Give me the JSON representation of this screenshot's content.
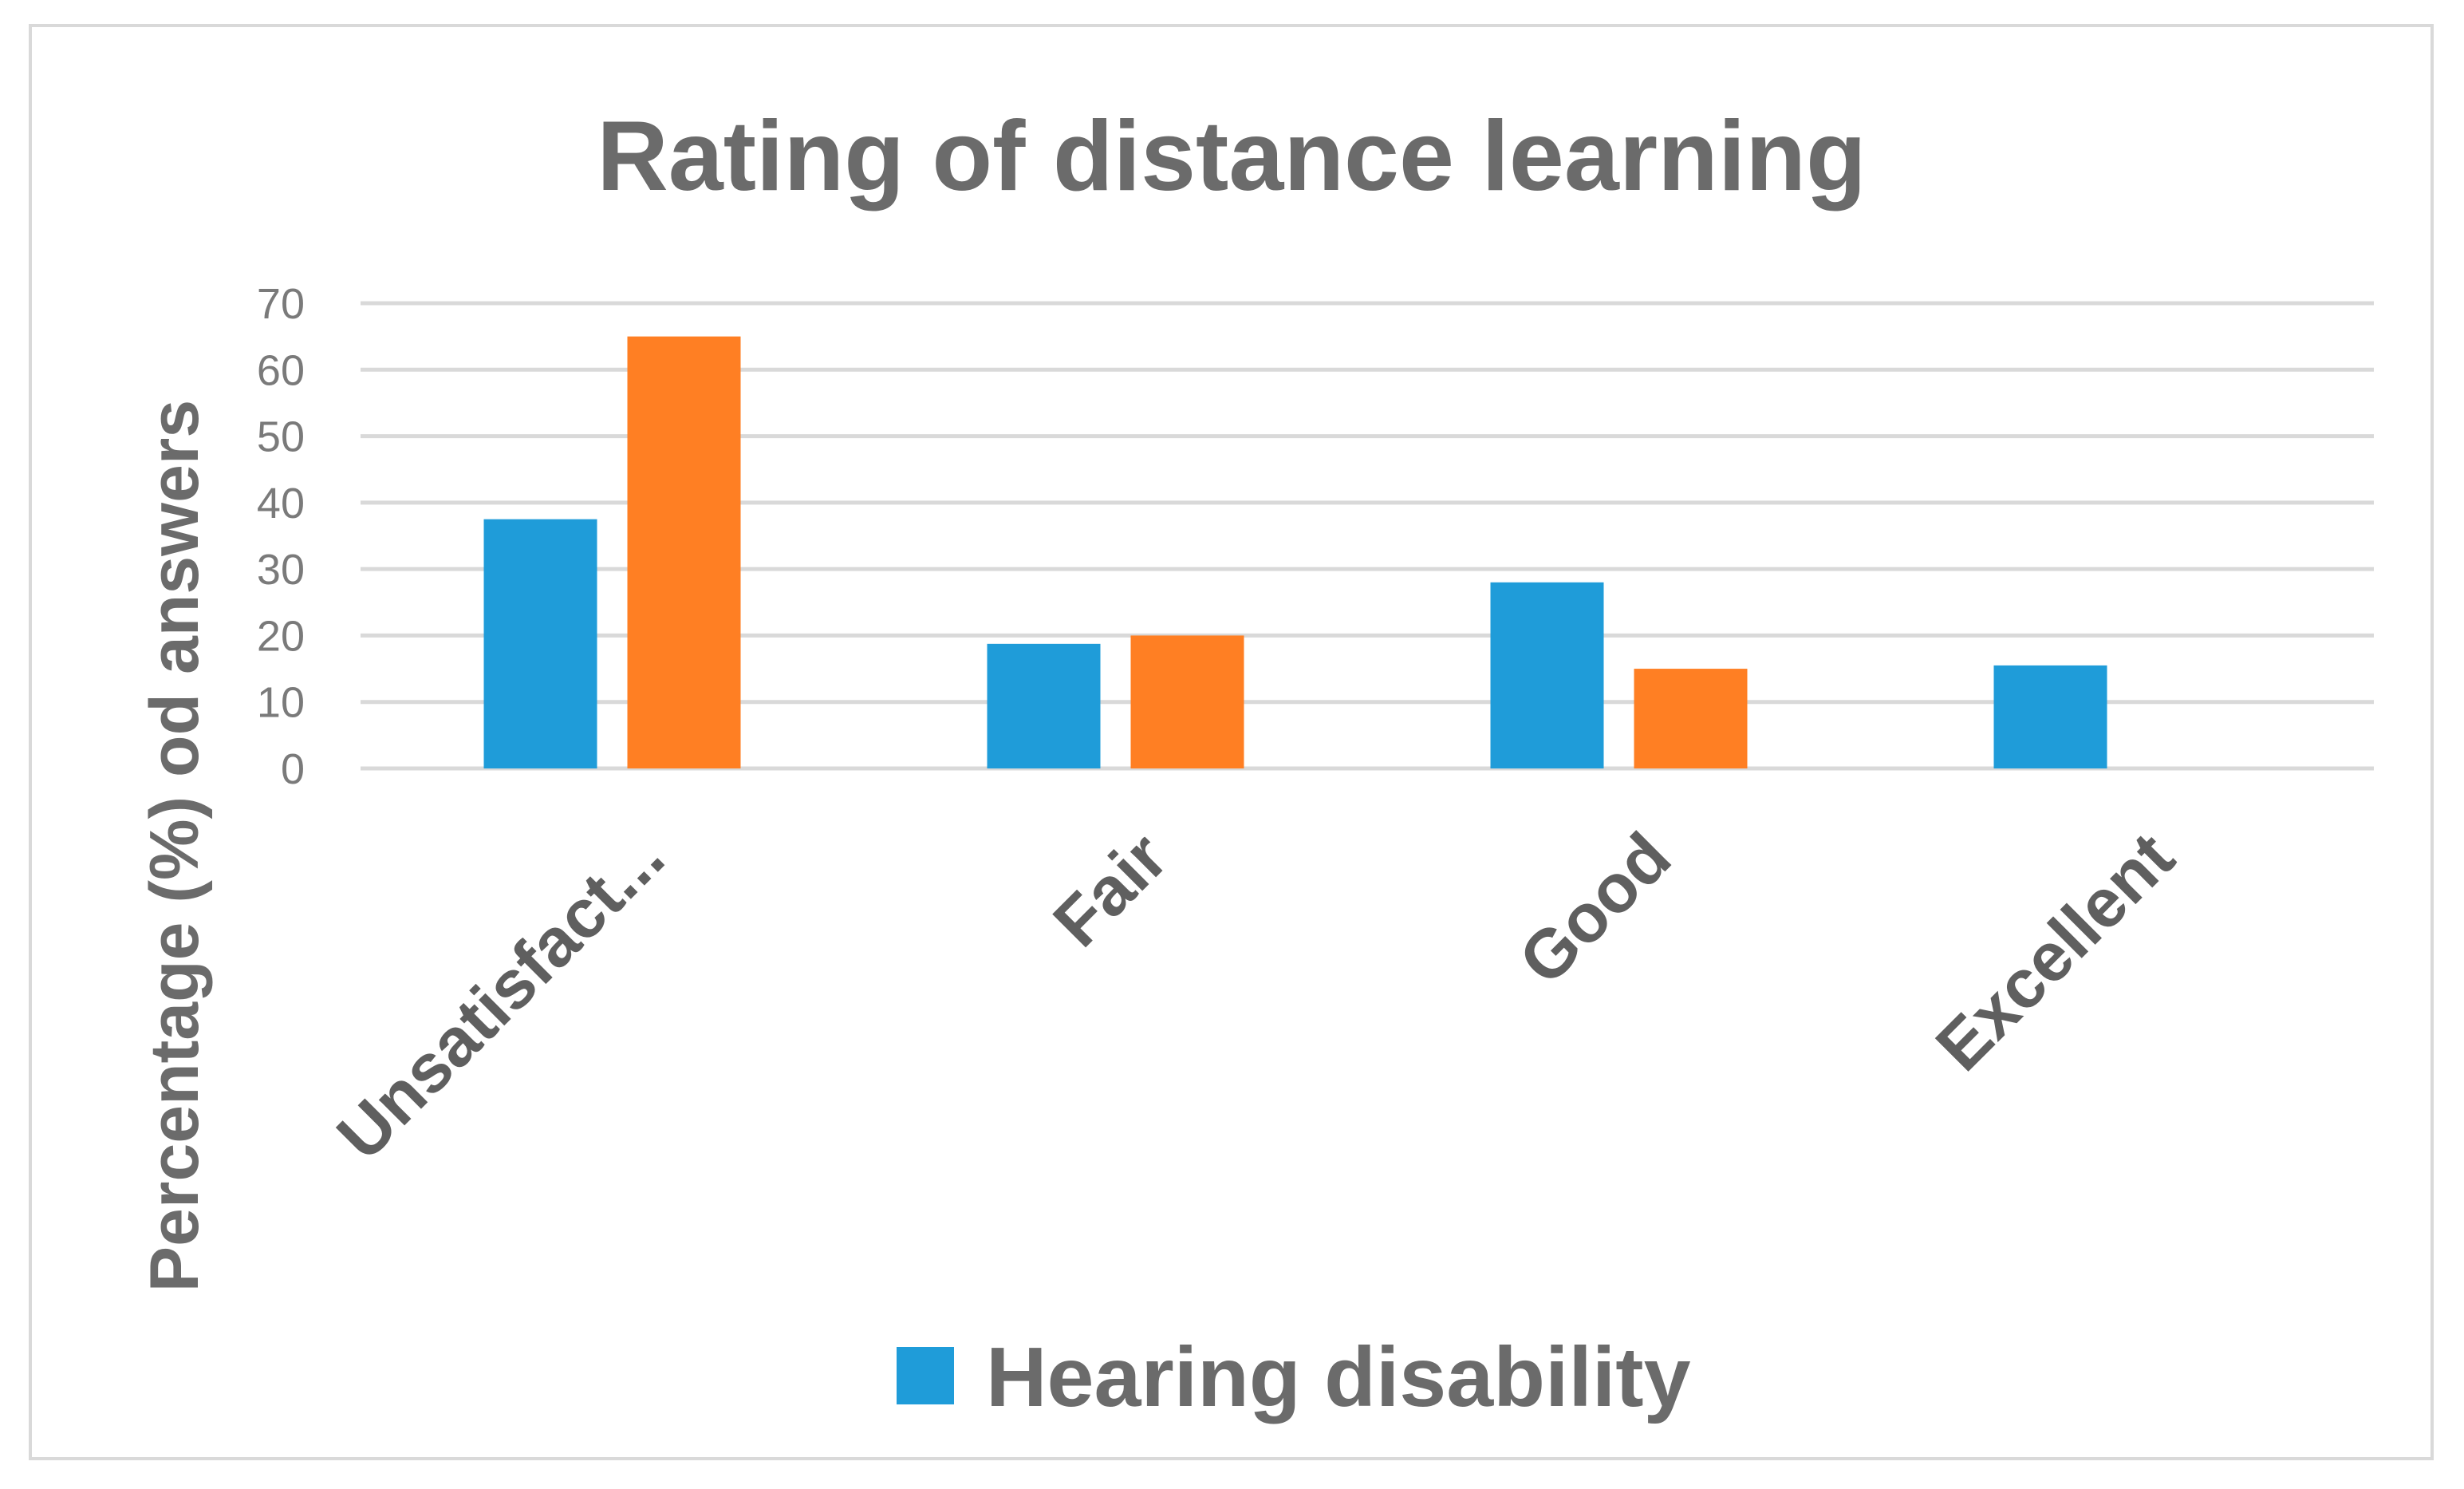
{
  "chart_data": {
    "type": "bar",
    "title": "Rating of distance learning",
    "ylabel": "Percentage (%) od answers",
    "xlabel": "",
    "ylim": [
      0,
      70
    ],
    "yticks": [
      "0",
      "10",
      "20",
      "30",
      "40",
      "50",
      "60",
      "70"
    ],
    "categories": [
      "Unsatisfact...",
      "Fair",
      "Good",
      "Excellent"
    ],
    "grid": true,
    "legend_position": "bottom",
    "series": [
      {
        "name": "Hearing disability",
        "color": "#1f9cd9",
        "values": [
          37.5,
          18.75,
          28,
          15.5
        ]
      },
      {
        "name": "",
        "color": "#ff7f23",
        "values": [
          65,
          20,
          15,
          0
        ]
      }
    ]
  }
}
